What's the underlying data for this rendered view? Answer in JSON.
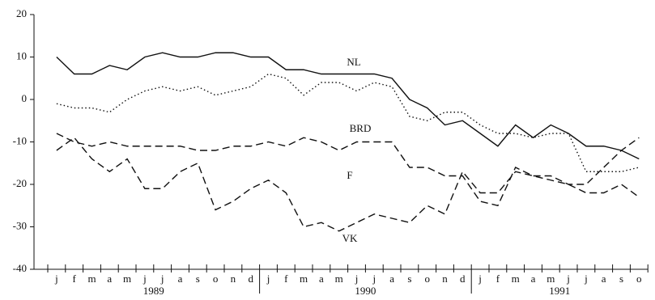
{
  "chart_data": {
    "type": "line",
    "categories": [
      "j",
      "f",
      "m",
      "a",
      "m",
      "j",
      "j",
      "a",
      "s",
      "o",
      "n",
      "d",
      "j",
      "f",
      "m",
      "a",
      "m",
      "j",
      "j",
      "a",
      "s",
      "o",
      "n",
      "d",
      "j",
      "f",
      "m",
      "a",
      "m",
      "j",
      "j",
      "a",
      "s",
      "o"
    ],
    "years": [
      "1989",
      "1990",
      "1991"
    ],
    "ylim": [
      -40,
      20
    ],
    "yticks": [
      -40,
      -30,
      -20,
      -10,
      0,
      10,
      20
    ],
    "series": [
      {
        "name": "NL",
        "color": "#111111",
        "dash": "solid",
        "values": [
          10,
          6,
          6,
          8,
          7,
          10,
          11,
          10,
          10,
          11,
          11,
          10,
          10,
          7,
          7,
          6,
          6,
          6,
          6,
          5,
          0,
          -2,
          -6,
          -5,
          -8,
          -11,
          -6,
          -9,
          -6,
          -8,
          -11,
          -11,
          -12,
          -14
        ]
      },
      {
        "name": "BRD",
        "color": "#111111",
        "dash": "dotted",
        "values": [
          -1,
          -2,
          -2,
          -3,
          0,
          2,
          3,
          2,
          3,
          1,
          2,
          3,
          6,
          5,
          1,
          4,
          4,
          2,
          4,
          3,
          -4,
          -5,
          -3,
          -3,
          -6,
          -8,
          -8,
          -9,
          -8,
          -8,
          -17,
          -17,
          -17,
          -16
        ]
      },
      {
        "name": "F",
        "color": "#111111",
        "dash": "dashed",
        "values": [
          -8,
          -10,
          -11,
          -10,
          -11,
          -11,
          -11,
          -11,
          -12,
          -12,
          -11,
          -11,
          -10,
          -11,
          -9,
          -10,
          -12,
          -10,
          -10,
          -10,
          -16,
          -16,
          -18,
          -18,
          -24,
          -25,
          -16,
          -18,
          -18,
          -20,
          -20,
          -16,
          -12,
          -9
        ]
      },
      {
        "name": "VK",
        "color": "#111111",
        "dash": "dashed",
        "values": [
          -12,
          -9,
          -14,
          -17,
          -14,
          -21,
          -21,
          -17,
          -15,
          -26,
          -24,
          -21,
          -19,
          -22,
          -30,
          -29,
          -31,
          -29,
          -27,
          -28,
          -29,
          -25,
          -27,
          -17,
          -22,
          -22,
          -17,
          -18,
          -19,
          -20,
          -22,
          -22,
          -20,
          -23
        ]
      }
    ]
  }
}
